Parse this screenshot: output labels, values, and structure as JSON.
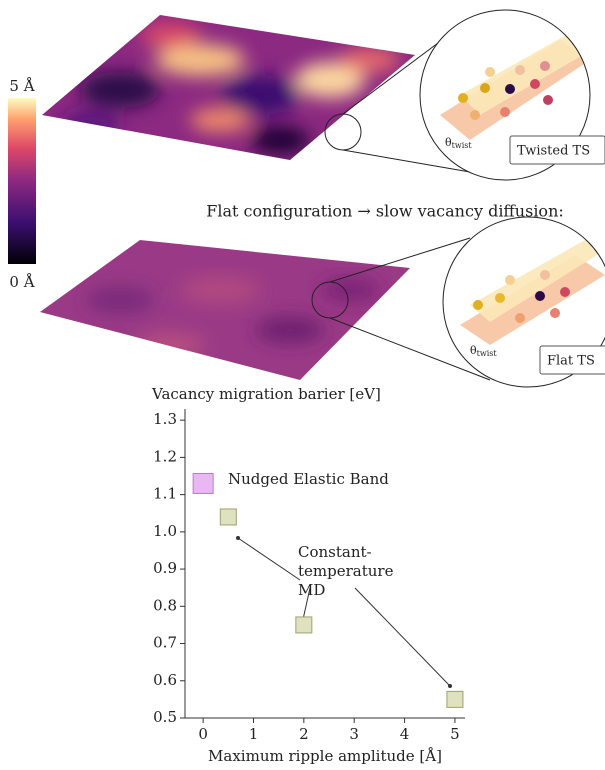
{
  "figure": {
    "colorbar": {
      "max_label": "5 Å",
      "min_label": "0 Å"
    },
    "caption": "Flat configuration → slow vacancy diffusion:",
    "twisted_label": "Twisted TS",
    "flat_label": "Flat TS",
    "angle_symbol": "θ",
    "angle_subscript": "twist"
  },
  "chart_data": {
    "type": "scatter",
    "title": "Vacancy migration barier [eV]",
    "x_label": "Maximum ripple amplitude [Å]",
    "xlim": [
      -0.36,
      5.2
    ],
    "xticks": [
      0,
      1,
      2,
      3,
      4,
      5
    ],
    "ylim": [
      0.5,
      1.33
    ],
    "yticks": [
      0.5,
      0.6,
      0.7,
      0.8,
      0.9,
      {
        "value": 1,
        "label": "1.0"
      },
      1.1,
      1.2,
      1.3
    ],
    "series": [
      {
        "name": "Nudged Elastic Band",
        "color": "#e9b8f2",
        "x": [
          0
        ],
        "values": [
          1.13
        ]
      },
      {
        "name": "Constant-temperature MD",
        "color": "#dfe2bf",
        "x": [
          0.5,
          2,
          5
        ],
        "values": [
          1.04,
          0.75,
          0.55
        ]
      }
    ]
  }
}
